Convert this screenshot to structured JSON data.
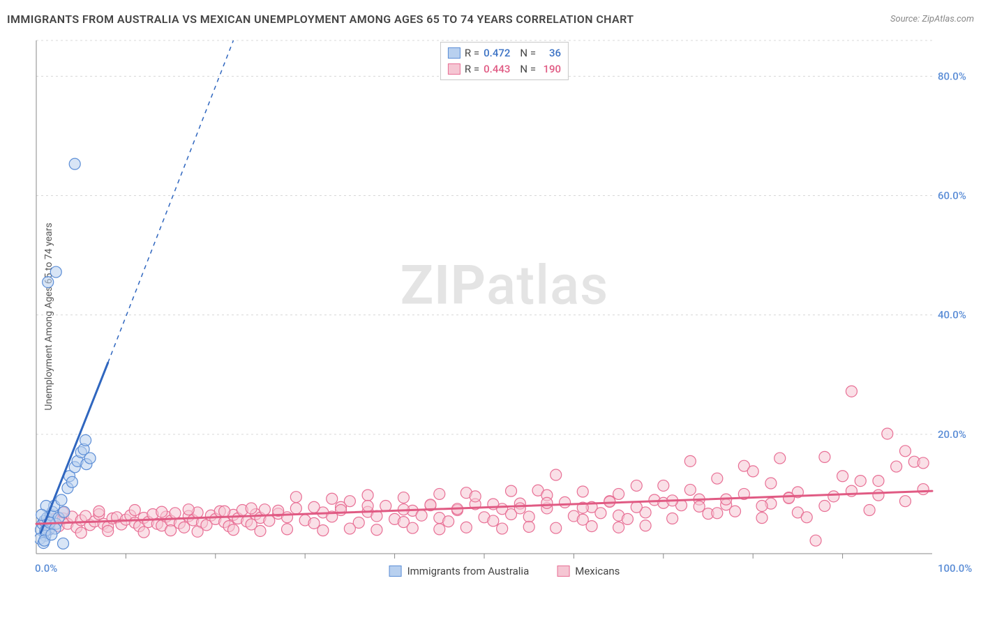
{
  "title": "IMMIGRANTS FROM AUSTRALIA VS MEXICAN UNEMPLOYMENT AMONG AGES 65 TO 74 YEARS CORRELATION CHART",
  "source_label": "Source: ",
  "source_name": "ZipAtlas.com",
  "yaxis_label": "Unemployment Among Ages 65 to 74 years",
  "watermark": {
    "bold": "ZIP",
    "rest": "atlas"
  },
  "chart": {
    "type": "scatter",
    "background_color": "#ffffff",
    "grid_color": "#d8d8d8",
    "axis_color": "#888888",
    "tick_label_color": "#5b8dd6",
    "xlim": [
      0,
      100
    ],
    "ylim": [
      0,
      86
    ],
    "xtick_major": [
      0,
      100
    ],
    "xtick_minor_step": 10,
    "ytick_labels": [
      {
        "v": 20,
        "t": "20.0%"
      },
      {
        "v": 40,
        "t": "40.0%"
      },
      {
        "v": 60,
        "t": "60.0%"
      },
      {
        "v": 80,
        "t": "80.0%"
      }
    ],
    "x_origin_label": "0.0%",
    "x_max_label": "100.0%",
    "marker_radius": 8,
    "series": [
      {
        "name": "Immigrants from Australia",
        "key": "australia",
        "fill": "#b8d0ef",
        "stroke": "#5b8dd6",
        "stroke_width": 1.2,
        "fill_opacity": 0.55,
        "r_value": "0.472",
        "n_value": "36",
        "trend": {
          "x1": 0.5,
          "y1": 3.5,
          "x2": 8,
          "y2": 32,
          "color": "#2f66bf",
          "width": 3,
          "dash_x2": 22,
          "dash_y2": 86
        },
        "points": [
          [
            0.5,
            4
          ],
          [
            0.7,
            5
          ],
          [
            0.9,
            5.5
          ],
          [
            1.2,
            6
          ],
          [
            1.4,
            4
          ],
          [
            1.0,
            3
          ],
          [
            1.6,
            6.5
          ],
          [
            1.8,
            7
          ],
          [
            2.0,
            8
          ],
          [
            1.1,
            8
          ],
          [
            0.6,
            6.5
          ],
          [
            2.2,
            5
          ],
          [
            2.5,
            6
          ],
          [
            2.8,
            9
          ],
          [
            3.1,
            7
          ],
          [
            0.4,
            2.5
          ],
          [
            3.5,
            11
          ],
          [
            3.7,
            13
          ],
          [
            4.0,
            12
          ],
          [
            4.3,
            14.5
          ],
          [
            4.6,
            15.5
          ],
          [
            0.8,
            1.8
          ],
          [
            5.0,
            17
          ],
          [
            5.3,
            17.5
          ],
          [
            5.6,
            15
          ],
          [
            5.5,
            19
          ],
          [
            6.0,
            16
          ],
          [
            1.3,
            45.5
          ],
          [
            2.2,
            47.2
          ],
          [
            4.3,
            65.3
          ],
          [
            1.0,
            3.8
          ],
          [
            1.5,
            5.2
          ],
          [
            2.1,
            4.2
          ],
          [
            0.9,
            2.2
          ],
          [
            1.7,
            3.2
          ],
          [
            3.0,
            1.7
          ]
        ]
      },
      {
        "name": "Mexicans",
        "key": "mexicans",
        "fill": "#f5c6d3",
        "stroke": "#e86f95",
        "stroke_width": 1.2,
        "fill_opacity": 0.55,
        "r_value": "0.443",
        "n_value": "190",
        "trend": {
          "x1": 0,
          "y1": 5,
          "x2": 100,
          "y2": 10.5,
          "color": "#e05a83",
          "width": 3
        },
        "points": [
          [
            1,
            5.1
          ],
          [
            1.5,
            4.2
          ],
          [
            2,
            5.8
          ],
          [
            2.5,
            4.6
          ],
          [
            3,
            5.9
          ],
          [
            3.5,
            5.0
          ],
          [
            4,
            6.2
          ],
          [
            4.5,
            4.4
          ],
          [
            5,
            5.6
          ],
          [
            5.5,
            6.3
          ],
          [
            6,
            4.8
          ],
          [
            6.5,
            5.4
          ],
          [
            7,
            6.6
          ],
          [
            7.5,
            5.0
          ],
          [
            8,
            4.5
          ],
          [
            8.5,
            5.9
          ],
          [
            9,
            6.1
          ],
          [
            9.5,
            4.9
          ],
          [
            10,
            5.7
          ],
          [
            10.5,
            6.4
          ],
          [
            11,
            5.2
          ],
          [
            11.5,
            4.6
          ],
          [
            12,
            6.0
          ],
          [
            12.5,
            5.3
          ],
          [
            13,
            6.6
          ],
          [
            13.5,
            5.0
          ],
          [
            14,
            4.7
          ],
          [
            14.5,
            6.2
          ],
          [
            15,
            5.5
          ],
          [
            15.5,
            6.8
          ],
          [
            16,
            5.1
          ],
          [
            16.5,
            4.4
          ],
          [
            17,
            6.3
          ],
          [
            17.5,
            5.6
          ],
          [
            18,
            6.9
          ],
          [
            18.5,
            5.2
          ],
          [
            19,
            4.8
          ],
          [
            19.5,
            6.4
          ],
          [
            20,
            5.8
          ],
          [
            20.5,
            7.1
          ],
          [
            21,
            5.3
          ],
          [
            21.5,
            4.6
          ],
          [
            22,
            6.5
          ],
          [
            22.5,
            5.9
          ],
          [
            23,
            7.3
          ],
          [
            23.5,
            5.4
          ],
          [
            24,
            4.9
          ],
          [
            24.5,
            6.6
          ],
          [
            25,
            6.0
          ],
          [
            25.5,
            7.4
          ],
          [
            26,
            5.5
          ],
          [
            27,
            6.7
          ],
          [
            28,
            6.1
          ],
          [
            29,
            7.6
          ],
          [
            30,
            5.6
          ],
          [
            31,
            5.1
          ],
          [
            32,
            6.9
          ],
          [
            33,
            6.2
          ],
          [
            34,
            7.8
          ],
          [
            35,
            8.8
          ],
          [
            36,
            5.2
          ],
          [
            37,
            7.0
          ],
          [
            38,
            6.3
          ],
          [
            39,
            8.0
          ],
          [
            40,
            5.8
          ],
          [
            41,
            5.3
          ],
          [
            42,
            7.2
          ],
          [
            43,
            6.4
          ],
          [
            44,
            8.1
          ],
          [
            45,
            6.0
          ],
          [
            46,
            5.4
          ],
          [
            47,
            7.3
          ],
          [
            48,
            10.2
          ],
          [
            49,
            8.3
          ],
          [
            50,
            6.1
          ],
          [
            51,
            5.5
          ],
          [
            52,
            7.5
          ],
          [
            53,
            6.6
          ],
          [
            54,
            8.4
          ],
          [
            55,
            6.2
          ],
          [
            56,
            10.6
          ],
          [
            57,
            7.6
          ],
          [
            58,
            13.2
          ],
          [
            59,
            8.6
          ],
          [
            60,
            6.3
          ],
          [
            61,
            5.7
          ],
          [
            62,
            7.8
          ],
          [
            63,
            6.8
          ],
          [
            64,
            8.8
          ],
          [
            65,
            6.4
          ],
          [
            66,
            5.8
          ],
          [
            67,
            11.4
          ],
          [
            68,
            6.9
          ],
          [
            69,
            9.0
          ],
          [
            70,
            8.5
          ],
          [
            71,
            5.9
          ],
          [
            72,
            8.1
          ],
          [
            73,
            15.5
          ],
          [
            74,
            9.1
          ],
          [
            75,
            6.7
          ],
          [
            76,
            12.6
          ],
          [
            77,
            8.2
          ],
          [
            78,
            7.1
          ],
          [
            79,
            14.7
          ],
          [
            80,
            13.8
          ],
          [
            81,
            6.0
          ],
          [
            82,
            8.4
          ],
          [
            83,
            16.0
          ],
          [
            84,
            9.4
          ],
          [
            85,
            6.9
          ],
          [
            86,
            6.1
          ],
          [
            87,
            2.2
          ],
          [
            88,
            16.2
          ],
          [
            89,
            9.6
          ],
          [
            90,
            13.0
          ],
          [
            91,
            27.2
          ],
          [
            92,
            12.2
          ],
          [
            93,
            7.3
          ],
          [
            94,
            9.8
          ],
          [
            95,
            20.1
          ],
          [
            96,
            14.6
          ],
          [
            97,
            8.8
          ],
          [
            98,
            15.4
          ],
          [
            99,
            10.8
          ],
          [
            99,
            15.2
          ],
          [
            5,
            3.5
          ],
          [
            8,
            3.8
          ],
          [
            12,
            3.6
          ],
          [
            15,
            3.9
          ],
          [
            18,
            3.7
          ],
          [
            22,
            4.0
          ],
          [
            25,
            3.8
          ],
          [
            28,
            4.1
          ],
          [
            32,
            3.9
          ],
          [
            35,
            4.2
          ],
          [
            38,
            4.0
          ],
          [
            42,
            4.3
          ],
          [
            45,
            4.1
          ],
          [
            48,
            4.4
          ],
          [
            52,
            4.2
          ],
          [
            55,
            4.5
          ],
          [
            58,
            4.3
          ],
          [
            62,
            4.6
          ],
          [
            65,
            4.4
          ],
          [
            68,
            4.7
          ],
          [
            29,
            9.5
          ],
          [
            33,
            9.2
          ],
          [
            37,
            9.8
          ],
          [
            41,
            9.4
          ],
          [
            45,
            10.0
          ],
          [
            49,
            9.6
          ],
          [
            53,
            10.5
          ],
          [
            57,
            9.8
          ],
          [
            61,
            10.4
          ],
          [
            65,
            10.0
          ],
          [
            70,
            11.4
          ],
          [
            73,
            10.7
          ],
          [
            76,
            6.8
          ],
          [
            79,
            10.0
          ],
          [
            82,
            11.8
          ],
          [
            85,
            10.3
          ],
          [
            88,
            8.0
          ],
          [
            91,
            10.5
          ],
          [
            94,
            12.2
          ],
          [
            97,
            17.2
          ],
          [
            3,
            6.9
          ],
          [
            7,
            7.1
          ],
          [
            11,
            7.3
          ],
          [
            14,
            7.0
          ],
          [
            17,
            7.4
          ],
          [
            21,
            7.1
          ],
          [
            24,
            7.6
          ],
          [
            27,
            7.2
          ],
          [
            31,
            7.8
          ],
          [
            34,
            7.3
          ],
          [
            37,
            8.0
          ],
          [
            41,
            7.4
          ],
          [
            44,
            8.2
          ],
          [
            47,
            7.5
          ],
          [
            51,
            8.3
          ],
          [
            54,
            7.6
          ],
          [
            57,
            8.5
          ],
          [
            61,
            7.7
          ],
          [
            64,
            8.7
          ],
          [
            67,
            7.8
          ],
          [
            71,
            8.9
          ],
          [
            74,
            7.9
          ],
          [
            77,
            9.1
          ],
          [
            81,
            8.0
          ],
          [
            84,
            9.3
          ]
        ]
      }
    ],
    "legend_bottom": [
      {
        "swatch_class": "swatch-blue",
        "label": "Immigrants from Australia"
      },
      {
        "swatch_class": "swatch-pink",
        "label": "Mexicans"
      }
    ]
  }
}
